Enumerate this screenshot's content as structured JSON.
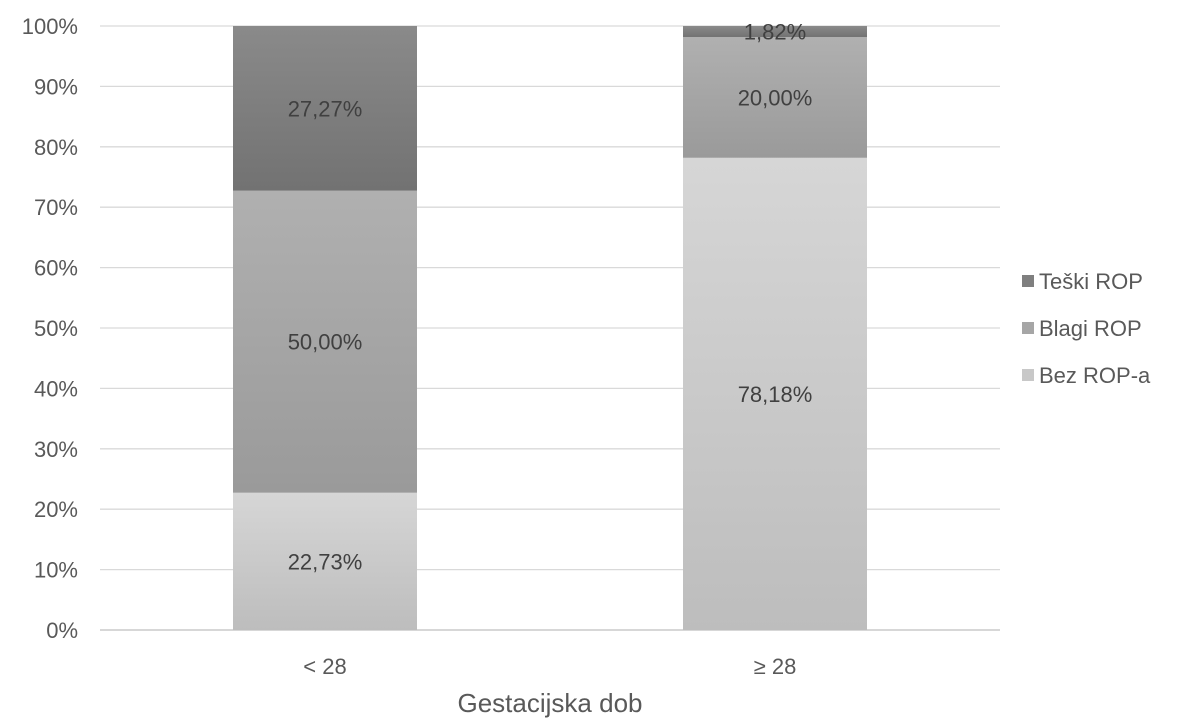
{
  "chart_data": {
    "type": "bar",
    "stacked": true,
    "percent_stacked": true,
    "categories": [
      "< 28",
      "≥ 28"
    ],
    "series": [
      {
        "name": "Bez ROP-a",
        "values": [
          22.73,
          78.18
        ],
        "labels": [
          "22,73%",
          "78,18%"
        ],
        "color": "#c8c8c8"
      },
      {
        "name": "Blagi ROP",
        "values": [
          50.0,
          20.0
        ],
        "labels": [
          "50,00%",
          "20,00%"
        ],
        "color": "#a6a6a6"
      },
      {
        "name": "Teški ROP",
        "values": [
          27.27,
          1.82
        ],
        "labels": [
          "27,27%",
          "1,82%"
        ],
        "color": "#7f7f7f"
      }
    ],
    "xlabel": "Gestacijska dob",
    "ylabel": "",
    "ylim": [
      0,
      100
    ],
    "yticks": [
      "0%",
      "10%",
      "20%",
      "30%",
      "40%",
      "50%",
      "60%",
      "70%",
      "80%",
      "90%",
      "100%"
    ],
    "grid": true,
    "legend_position": "right"
  }
}
